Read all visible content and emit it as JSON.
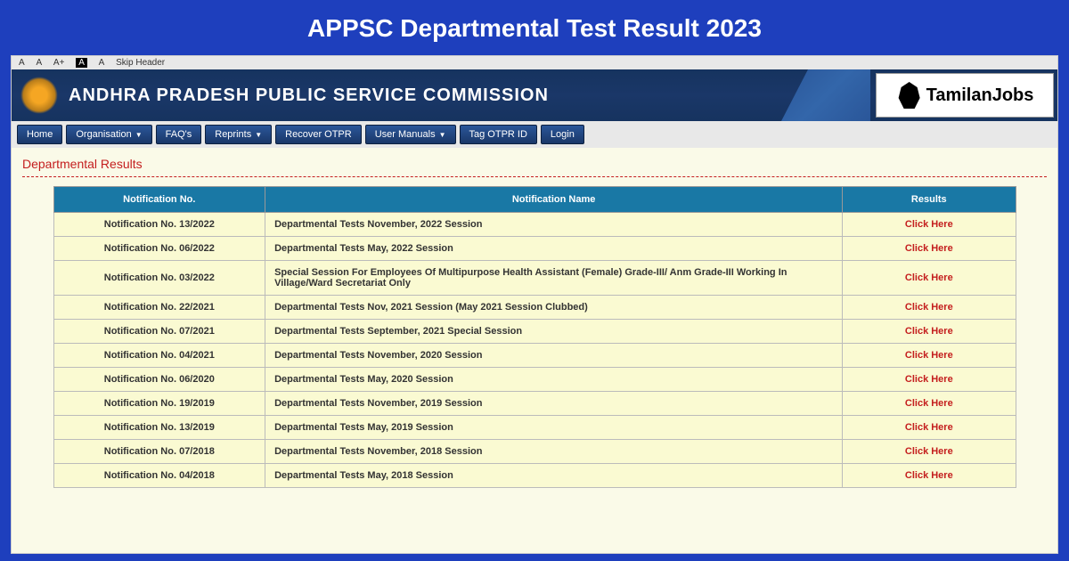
{
  "page_title": "APPSC Departmental Test Result 2023",
  "access_bar": {
    "items": [
      "A",
      "A",
      "A+",
      "A",
      "A",
      "Skip Header"
    ]
  },
  "header": {
    "org_name": "ANDHRA PRADESH PUBLIC SERVICE COMMISSION",
    "logo_text": "TamilanJobs"
  },
  "nav": {
    "items": [
      {
        "label": "Home",
        "dropdown": false
      },
      {
        "label": "Organisation",
        "dropdown": true
      },
      {
        "label": "FAQ's",
        "dropdown": false
      },
      {
        "label": "Reprints",
        "dropdown": true
      },
      {
        "label": "Recover OTPR",
        "dropdown": false
      },
      {
        "label": "User Manuals",
        "dropdown": true
      },
      {
        "label": "Tag OTPR ID",
        "dropdown": false
      },
      {
        "label": "Login",
        "dropdown": false
      }
    ]
  },
  "section_title": "Departmental Results",
  "table": {
    "headers": [
      "Notification No.",
      "Notification Name",
      "Results"
    ],
    "link_text": "Click Here",
    "rows": [
      {
        "notif": "Notification No. 13/2022",
        "name": "Departmental Tests November, 2022 Session"
      },
      {
        "notif": "Notification No. 06/2022",
        "name": "Departmental Tests May, 2022 Session"
      },
      {
        "notif": "Notification No. 03/2022",
        "name": "Special Session For Employees Of Multipurpose Health Assistant (Female) Grade-III/ Anm Grade-III Working In Village/Ward Secretariat Only"
      },
      {
        "notif": "Notification No. 22/2021",
        "name": "Departmental Tests Nov, 2021 Session (May 2021 Session Clubbed)"
      },
      {
        "notif": "Notification No. 07/2021",
        "name": "Departmental Tests September, 2021 Special Session"
      },
      {
        "notif": "Notification No. 04/2021",
        "name": "Departmental Tests November, 2020 Session"
      },
      {
        "notif": "Notification No. 06/2020",
        "name": "Departmental Tests May, 2020 Session"
      },
      {
        "notif": "Notification No. 19/2019",
        "name": "Departmental Tests November, 2019 Session"
      },
      {
        "notif": "Notification No. 13/2019",
        "name": "Departmental Tests May, 2019 Session"
      },
      {
        "notif": "Notification No. 07/2018",
        "name": "Departmental Tests November, 2018 Session"
      },
      {
        "notif": "Notification No. 04/2018",
        "name": "Departmental Tests May, 2018 Session"
      }
    ]
  },
  "colors": {
    "outer_bg": "#1e3fbd",
    "screenshot_bg": "#fafae8",
    "header_bg": "#16335f",
    "nav_btn_bg": "#1a3768",
    "table_header_bg": "#1978a5",
    "table_cell_bg": "#fafad2",
    "link_color": "#c41e1e",
    "section_title_color": "#c41e1e"
  }
}
